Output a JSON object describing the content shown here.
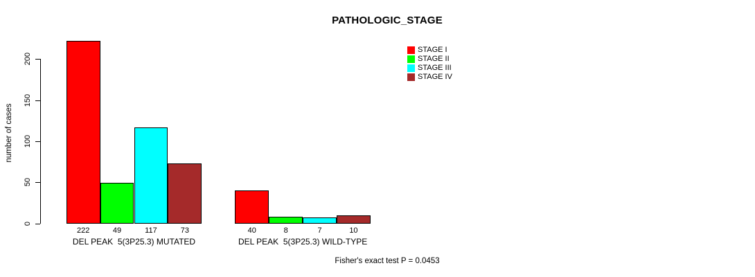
{
  "chart_data": {
    "type": "bar",
    "title": "PATHOLOGIC_STAGE",
    "ylabel": "number of cases",
    "xlabel": "",
    "ylim": [
      0,
      222
    ],
    "yticks": [
      0,
      50,
      100,
      150,
      200
    ],
    "grid": false,
    "legend_position": "top-right",
    "categories": [
      "DEL PEAK  5(3P25.3) MUTATED",
      "DEL PEAK  5(3P25.3) WILD-TYPE"
    ],
    "series": [
      {
        "name": "STAGE I",
        "color": "#ff0000",
        "values": [
          222,
          40
        ]
      },
      {
        "name": "STAGE II",
        "color": "#00ff00",
        "values": [
          49,
          8
        ]
      },
      {
        "name": "STAGE III",
        "color": "#00ffff",
        "values": [
          117,
          7
        ]
      },
      {
        "name": "STAGE IV",
        "color": "#a52a2a",
        "values": [
          73,
          10
        ]
      }
    ],
    "bar_value_labels": [
      [
        222,
        49,
        117,
        73
      ],
      [
        40,
        8,
        7,
        10
      ]
    ],
    "annotation": "Fisher's exact test P = 0.0453"
  }
}
